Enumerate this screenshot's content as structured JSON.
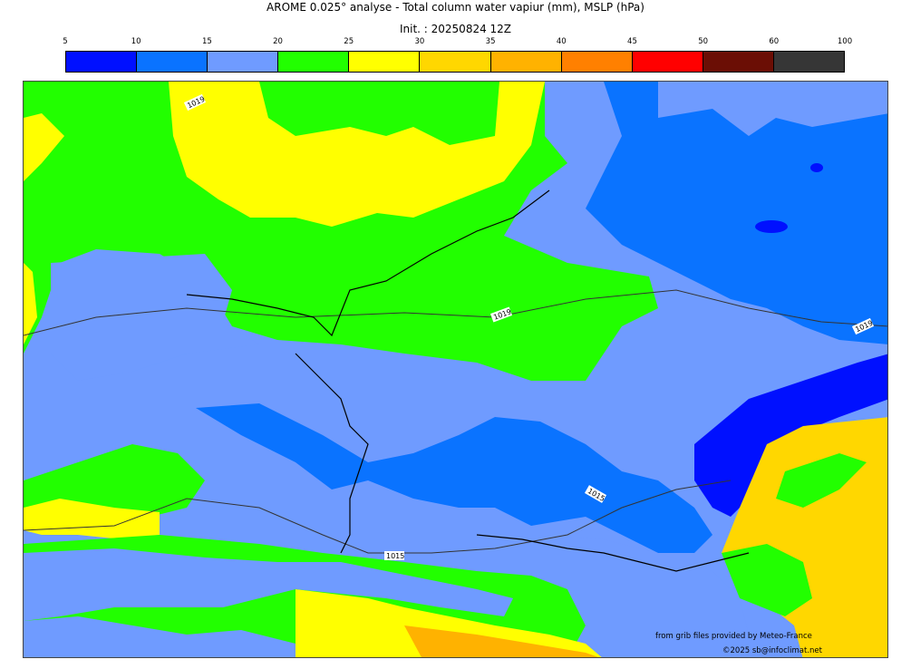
{
  "title": "AROME 0.025° analyse - Total column water vapiur (mm), MSLP (hPa)",
  "subtitle": "Init. : 20250824 12Z",
  "colorbar": {
    "ticks": [
      "5",
      "10",
      "15",
      "20",
      "25",
      "30",
      "35",
      "40",
      "45",
      "50",
      "60",
      "100"
    ],
    "colors": [
      "#0010ff",
      "#0a73ff",
      "#6f9bff",
      "#22ff00",
      "#ffff00",
      "#ffd700",
      "#ffb200",
      "#ff8000",
      "#ff0000",
      "#6b0e05",
      "#363636"
    ]
  },
  "map": {
    "isobar_labels": [
      "1019",
      "1019",
      "1019",
      "1015",
      "1015"
    ]
  },
  "credits": {
    "source": "from grib files provided by Meteo-France",
    "copyright": "©2025 sb@infoclimat.net"
  }
}
